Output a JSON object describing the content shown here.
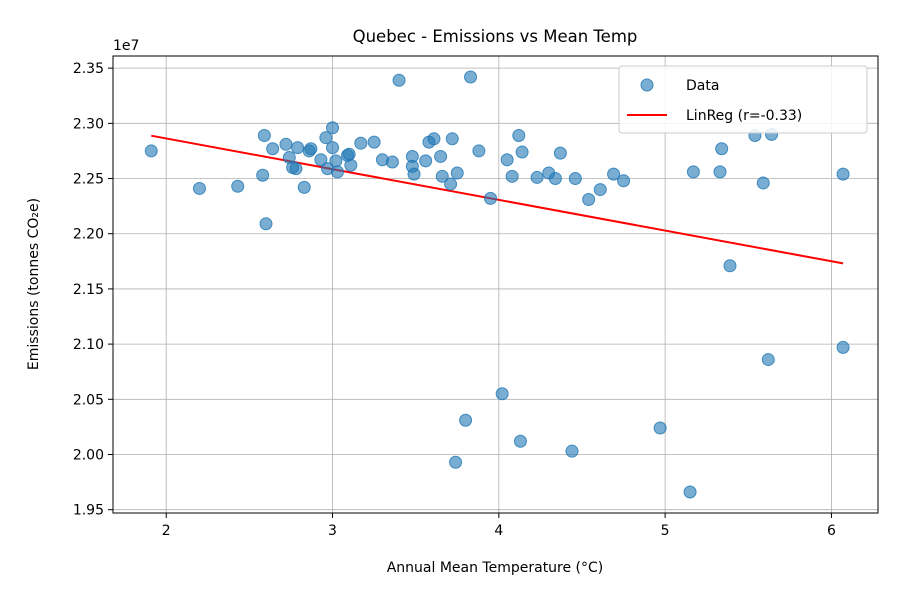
{
  "chart_data": {
    "type": "scatter",
    "title": "Quebec - Emissions vs Mean Temp",
    "xlabel": "Annual Mean Temperature (°C)",
    "ylabel": "Emissions (tonnes CO₂e)",
    "y_offset_label": "1e7",
    "xlim": [
      1.68,
      6.28
    ],
    "ylim": [
      1.947,
      2.361
    ],
    "x_ticks": [
      2,
      3,
      4,
      5,
      6
    ],
    "x_tick_labels": [
      "2",
      "3",
      "4",
      "5",
      "6"
    ],
    "y_ticks": [
      1.95,
      2.0,
      2.05,
      2.1,
      2.15,
      2.2,
      2.25,
      2.3,
      2.35
    ],
    "y_tick_labels": [
      "1.95",
      "2.00",
      "2.05",
      "2.10",
      "2.15",
      "2.20",
      "2.25",
      "2.30",
      "2.35"
    ],
    "grid": true,
    "legend_position": "top-right",
    "colors": {
      "points": "#1f77b4",
      "line": "#ff0000"
    },
    "series": [
      {
        "name": "Data",
        "kind": "scatter",
        "points": [
          [
            1.91,
            2.275
          ],
          [
            2.2,
            2.241
          ],
          [
            2.43,
            2.243
          ],
          [
            2.58,
            2.253
          ],
          [
            2.59,
            2.289
          ],
          [
            2.6,
            2.209
          ],
          [
            2.64,
            2.277
          ],
          [
            2.72,
            2.281
          ],
          [
            2.74,
            2.269
          ],
          [
            2.76,
            2.26
          ],
          [
            2.78,
            2.259
          ],
          [
            2.79,
            2.278
          ],
          [
            2.83,
            2.242
          ],
          [
            2.86,
            2.275
          ],
          [
            2.87,
            2.277
          ],
          [
            2.93,
            2.267
          ],
          [
            2.96,
            2.287
          ],
          [
            2.97,
            2.259
          ],
          [
            3.0,
            2.296
          ],
          [
            3.0,
            2.278
          ],
          [
            3.02,
            2.266
          ],
          [
            3.03,
            2.256
          ],
          [
            3.09,
            2.271
          ],
          [
            3.1,
            2.272
          ],
          [
            3.11,
            2.262
          ],
          [
            3.17,
            2.282
          ],
          [
            3.25,
            2.283
          ],
          [
            3.3,
            2.267
          ],
          [
            3.36,
            2.265
          ],
          [
            3.4,
            2.339
          ],
          [
            3.48,
            2.27
          ],
          [
            3.48,
            2.261
          ],
          [
            3.49,
            2.254
          ],
          [
            3.56,
            2.266
          ],
          [
            3.58,
            2.283
          ],
          [
            3.61,
            2.286
          ],
          [
            3.65,
            2.27
          ],
          [
            3.66,
            2.252
          ],
          [
            3.71,
            2.245
          ],
          [
            3.72,
            2.286
          ],
          [
            3.74,
            1.993
          ],
          [
            3.75,
            2.255
          ],
          [
            3.8,
            2.031
          ],
          [
            3.83,
            2.342
          ],
          [
            3.88,
            2.275
          ],
          [
            3.95,
            2.232
          ],
          [
            4.02,
            2.055
          ],
          [
            4.05,
            2.267
          ],
          [
            4.08,
            2.252
          ],
          [
            4.12,
            2.289
          ],
          [
            4.13,
            2.012
          ],
          [
            4.14,
            2.274
          ],
          [
            4.23,
            2.251
          ],
          [
            4.3,
            2.255
          ],
          [
            4.34,
            2.25
          ],
          [
            4.37,
            2.273
          ],
          [
            4.44,
            2.003
          ],
          [
            4.46,
            2.25
          ],
          [
            4.54,
            2.231
          ],
          [
            4.61,
            2.24
          ],
          [
            4.69,
            2.254
          ],
          [
            4.75,
            2.248
          ],
          [
            4.97,
            2.024
          ],
          [
            5.15,
            1.966
          ],
          [
            5.17,
            2.256
          ],
          [
            5.33,
            2.256
          ],
          [
            5.34,
            2.277
          ],
          [
            5.39,
            2.171
          ],
          [
            5.54,
            2.289
          ],
          [
            5.59,
            2.246
          ],
          [
            5.62,
            2.086
          ],
          [
            5.64,
            2.29
          ],
          [
            6.07,
            2.254
          ],
          [
            6.07,
            2.097
          ]
        ]
      },
      {
        "name": "LinReg (r=-0.33)",
        "kind": "line",
        "points": [
          [
            1.91,
            2.2888
          ],
          [
            6.07,
            2.1731
          ]
        ]
      }
    ]
  }
}
